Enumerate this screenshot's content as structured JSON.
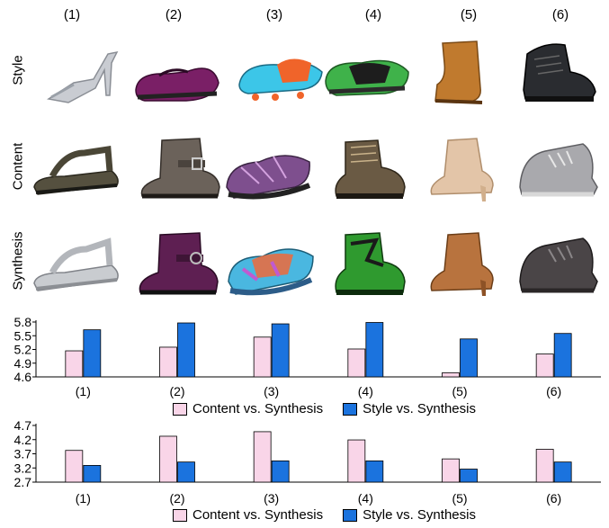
{
  "column_labels": [
    "(1)",
    "(2)",
    "(3)",
    "(4)",
    "(5)",
    "(6)"
  ],
  "row_labels": [
    "Style",
    "Content",
    "Synthesis"
  ],
  "images": {
    "style": [
      "silver-peep-toe-heel",
      "purple-mary-jane-flat",
      "blue-orange-cleat",
      "green-black-trail-shoe",
      "tan-suede-wedge-bootie",
      "black-winter-boot"
    ],
    "content": [
      "brown-sport-sandal",
      "grey-leather-buckle-boot",
      "purple-hiking-sandal",
      "brown-hiking-boot",
      "beige-suede-ankle-boot",
      "grey-felt-lace-up-bootie"
    ],
    "synthesis": [
      "silver-sandal",
      "purple-buckle-boot",
      "multicolor-sandal",
      "green-hiking-boot",
      "brown-ankle-boot",
      "dark-grey-lace-up-bootie"
    ]
  },
  "colors": {
    "content_bar": "#f9d5e8",
    "style_bar": "#1b73de"
  },
  "chart_data": [
    {
      "type": "bar",
      "categories": [
        "(1)",
        "(2)",
        "(3)",
        "(4)",
        "(5)",
        "(6)"
      ],
      "series": [
        {
          "name": "Content vs. Synthesis",
          "values": [
            5.17,
            5.25,
            5.47,
            5.21,
            4.69,
            5.1
          ]
        },
        {
          "name": "Style vs. Synthesis",
          "values": [
            5.63,
            5.78,
            5.76,
            5.79,
            5.43,
            5.55
          ]
        }
      ],
      "yticks": [
        "4.6",
        "4.9",
        "5.2",
        "5.5",
        "5.8"
      ],
      "ylim": [
        4.6,
        5.8
      ],
      "legend_position": "bottom"
    },
    {
      "type": "bar",
      "categories": [
        "(1)",
        "(2)",
        "(3)",
        "(4)",
        "(5)",
        "(6)"
      ],
      "series": [
        {
          "name": "Content vs. Synthesis",
          "values": [
            3.82,
            4.32,
            4.48,
            4.19,
            3.52,
            3.86
          ]
        },
        {
          "name": "Style vs. Synthesis",
          "values": [
            3.29,
            3.41,
            3.45,
            3.45,
            3.16,
            3.41
          ]
        }
      ],
      "yticks": [
        "2.7",
        "3.2",
        "3.7",
        "4.2",
        "4.7"
      ],
      "ylim": [
        2.7,
        4.7
      ],
      "legend_position": "bottom"
    }
  ]
}
